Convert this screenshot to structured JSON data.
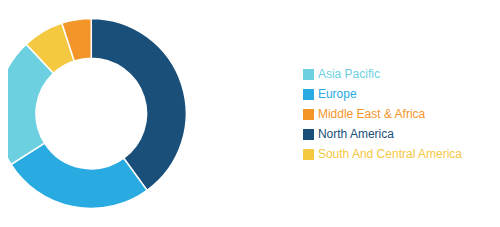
{
  "chart_data": {
    "type": "pie",
    "categories": [
      "North America",
      "Europe",
      "Asia Pacific",
      "South And Central America",
      "Middle East & Africa"
    ],
    "values": [
      40,
      26,
      22,
      7,
      5
    ],
    "colors": [
      "#1a4f7a",
      "#29abe2",
      "#6dd0e0",
      "#f5c842",
      "#f4952a"
    ],
    "legend": "right"
  }
}
